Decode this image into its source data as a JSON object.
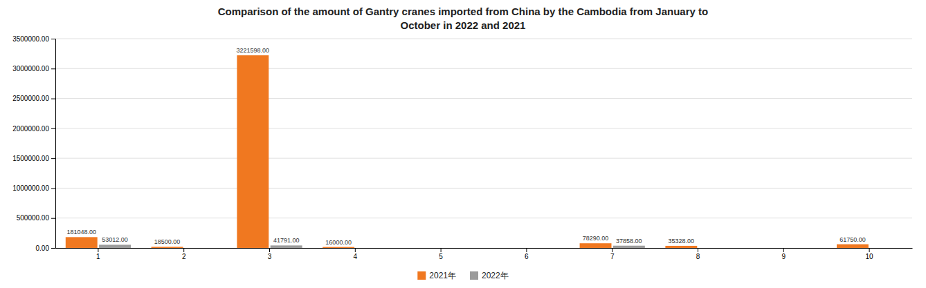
{
  "chart_data": {
    "type": "bar",
    "title": "Comparison of the amount of Gantry cranes imported from China by the Cambodia from January to\nOctober in 2022 and 2021",
    "categories": [
      "1",
      "2",
      "3",
      "4",
      "5",
      "6",
      "7",
      "8",
      "9",
      "10"
    ],
    "series": [
      {
        "name": "2021年",
        "color": "#f07820",
        "values": [
          181048.0,
          18500.0,
          3221598.0,
          16000.0,
          0,
          0,
          78290.0,
          35328.0,
          0,
          61750.0
        ],
        "value_labels": [
          "181048.00",
          "18500.00",
          "3221598.00",
          "16000.00",
          null,
          null,
          "78290.00",
          "35328.00",
          null,
          "61750.00"
        ]
      },
      {
        "name": "2022年",
        "color": "#9b9b9b",
        "values": [
          53012.0,
          0,
          41791.0,
          0,
          0,
          0,
          37858.0,
          0,
          0,
          0
        ],
        "value_labels": [
          "53012.00",
          null,
          "41791.00",
          null,
          null,
          null,
          "37858.00",
          null,
          null,
          null
        ]
      }
    ],
    "ylim": [
      0,
      3500000
    ],
    "yticks": [
      {
        "value": 0,
        "label": "0.00"
      },
      {
        "value": 500000,
        "label": "500000.00"
      },
      {
        "value": 1000000,
        "label": "1000000.00"
      },
      {
        "value": 1500000,
        "label": "1500000.00"
      },
      {
        "value": 2000000,
        "label": "2000000.00"
      },
      {
        "value": 2500000,
        "label": "2500000.00"
      },
      {
        "value": 3000000,
        "label": "3000000.00"
      },
      {
        "value": 3500000,
        "label": "3500000.00"
      }
    ],
    "grid": true,
    "data_labels": true,
    "legend": "bottom"
  }
}
